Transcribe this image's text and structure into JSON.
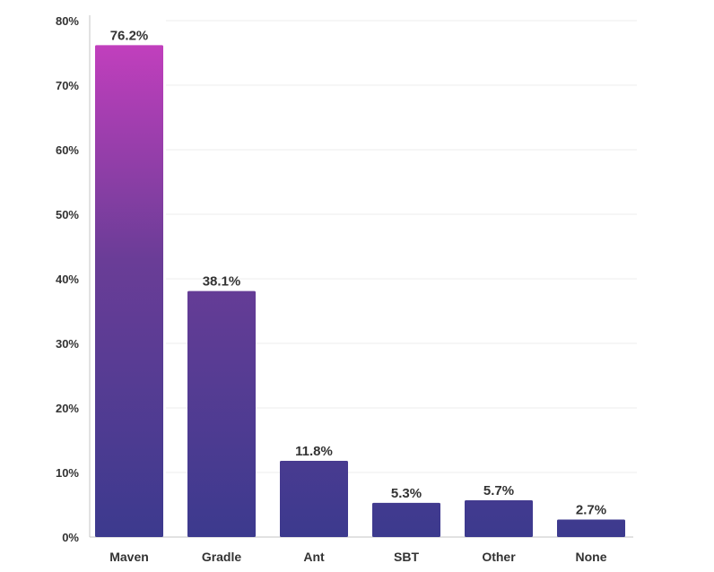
{
  "chart_data": {
    "type": "bar",
    "categories": [
      "Maven",
      "Gradle",
      "Ant",
      "SBT",
      "Other",
      "None"
    ],
    "values": [
      76.2,
      38.1,
      11.8,
      5.3,
      5.7,
      2.7
    ],
    "value_labels": [
      "76.2%",
      "38.1%",
      "11.8%",
      "5.3%",
      "5.7%",
      "2.7%"
    ],
    "y_ticks": [
      0,
      10,
      20,
      30,
      40,
      50,
      60,
      70,
      80
    ],
    "y_tick_labels": [
      "0%",
      "10%",
      "20%",
      "30%",
      "40%",
      "50%",
      "60%",
      "70%",
      "80%"
    ],
    "ylim": [
      0,
      80
    ],
    "grid": true,
    "legend": "none",
    "colors": {
      "bar_top_tall": "#c63fbf",
      "bar_mid": "#6a3d97",
      "bar_bottom": "#3c3a8e",
      "grid": "#eeeeee",
      "axis": "#c4c4c4",
      "text": "#333333"
    }
  }
}
